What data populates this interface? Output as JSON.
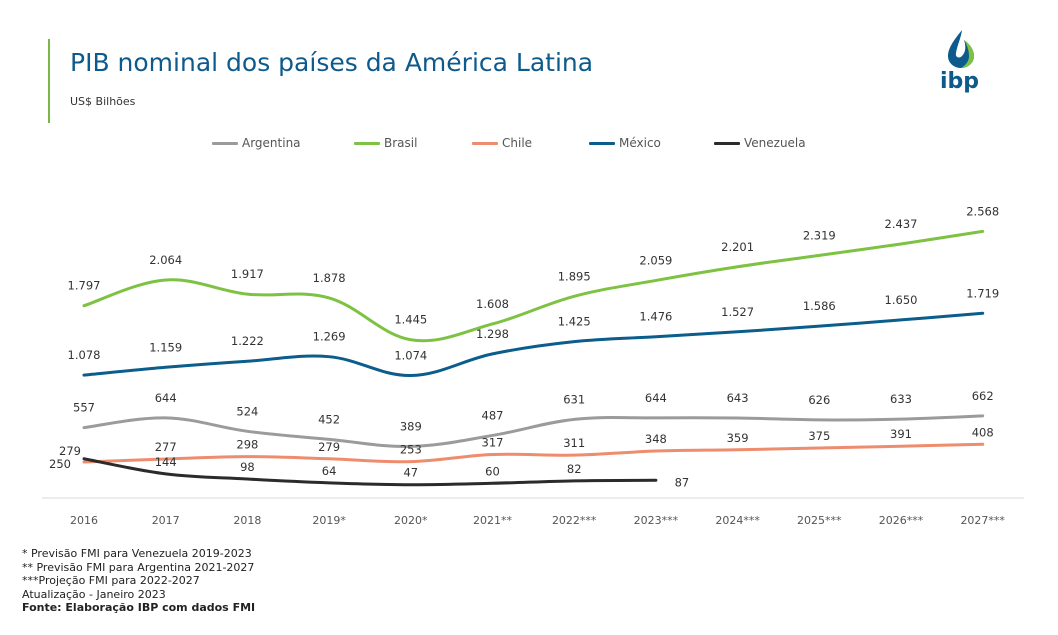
{
  "header": {
    "title": "PIB nominal dos países da América Latina",
    "subtitle": "US$ Bilhões",
    "logo_text": "ibp"
  },
  "colors": {
    "accent": "#7ab648",
    "title": "#0d5a8c"
  },
  "chart_data": {
    "type": "line",
    "title": "PIB nominal dos países da América Latina",
    "ylabel": "US$ Bilhões",
    "xlabel": "",
    "categories": [
      "2016",
      "2017",
      "2018",
      "2019*",
      "2020*",
      "2021**",
      "2022***",
      "2023***",
      "2024***",
      "2025***",
      "2026***",
      "2027***"
    ],
    "ylim": [
      0,
      2600
    ],
    "grid": false,
    "legend_position": "top",
    "series": [
      {
        "name": "Argentina",
        "color": "#9b9b9b",
        "values": [
          557,
          644,
          524,
          452,
          389,
          487,
          631,
          644,
          643,
          626,
          633,
          662
        ],
        "labels": [
          "557",
          "644",
          "524",
          "452",
          "389",
          "487",
          "631",
          "644",
          "643",
          "626",
          "633",
          "662"
        ]
      },
      {
        "name": "Brasil",
        "color": "#7dc242",
        "values": [
          1797,
          2064,
          1917,
          1878,
          1445,
          1608,
          1895,
          2059,
          2201,
          2319,
          2437,
          2568
        ],
        "labels": [
          "1.797",
          "2.064",
          "1.917",
          "1.878",
          "1.445",
          "1.608",
          "1.895",
          "2.059",
          "2.201",
          "2.319",
          "2.437",
          "2.568"
        ]
      },
      {
        "name": "Chile",
        "color": "#ee8c6e",
        "values": [
          250,
          277,
          298,
          279,
          253,
          317,
          311,
          348,
          359,
          375,
          391,
          408
        ],
        "labels": [
          "250",
          "277",
          "298",
          "279",
          "253",
          "317",
          "311",
          "348",
          "359",
          "375",
          "391",
          "408"
        ]
      },
      {
        "name": "México",
        "color": "#0b5d8c",
        "values": [
          1078,
          1159,
          1222,
          1269,
          1074,
          1298,
          1425,
          1476,
          1527,
          1586,
          1650,
          1719
        ],
        "labels": [
          "1.078",
          "1.159",
          "1.222",
          "1.269",
          "1.074",
          "1.298",
          "1.425",
          "1.476",
          "1.527",
          "1.586",
          "1.650",
          "1.719"
        ]
      },
      {
        "name": "Venezuela",
        "color": "#2b2b2b",
        "values": [
          279,
          144,
          98,
          64,
          47,
          60,
          82,
          87,
          null,
          null,
          null,
          null
        ],
        "labels": [
          "279",
          "144",
          "98",
          "64",
          "47",
          "60",
          "82",
          "87",
          null,
          null,
          null,
          null
        ]
      }
    ]
  },
  "notes": {
    "n1": "* Previsão FMI para Venezuela  2019-2023",
    "n2": "** Previsão FMI para Argentina 2021-2027",
    "n3": "***Projeção FMI para 2022-2027",
    "update": "Atualização - Janeiro 2023",
    "source": "Fonte: Elaboração IBP com dados FMI"
  }
}
